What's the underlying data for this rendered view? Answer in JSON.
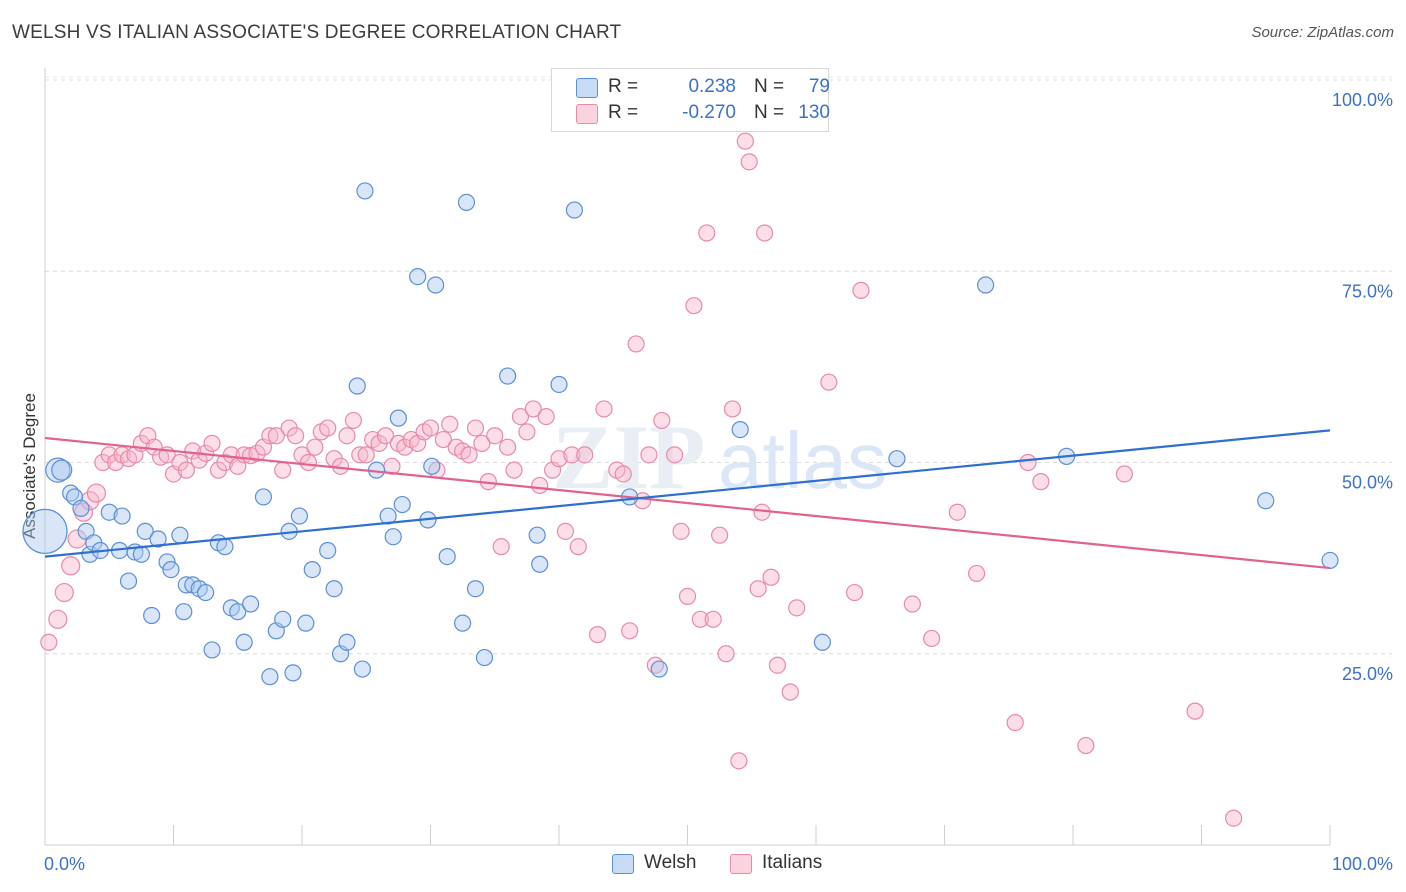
{
  "header": {
    "title": "WELSH VS ITALIAN ASSOCIATE'S DEGREE CORRELATION CHART",
    "source": "Source: ZipAtlas.com"
  },
  "legend": {
    "rows": [
      {
        "r_label": "R =",
        "r_value": "0.238",
        "n_label": "N =",
        "n_value": "79",
        "color": "#a9c8f0"
      },
      {
        "r_label": "R =",
        "r_value": "-0.270",
        "n_label": "N =",
        "n_value": "130",
        "color": "#f6b6c9"
      }
    ]
  },
  "bottom_legend": {
    "welsh": "Welsh",
    "italians": "Italians"
  },
  "colors": {
    "welsh_fill": "#a9c8f0",
    "welsh_stroke": "#5b8fd6",
    "welsh_line": "#2f6fcf",
    "italians_fill": "#f6b6c9",
    "italians_stroke": "#e88aa8",
    "italians_line": "#e0628e",
    "tick_label": "#3b72c8"
  },
  "chart_data": {
    "type": "scatter",
    "title": "WELSH VS ITALIAN ASSOCIATE'S DEGREE CORRELATION CHART",
    "xlabel": "",
    "ylabel": "Associate's Degree",
    "xlim": [
      0,
      100
    ],
    "ylim": [
      0,
      100
    ],
    "x_tick_labels": [
      "0.0%",
      "100.0%"
    ],
    "y_tick_labels": [
      "25.0%",
      "50.0%",
      "75.0%",
      "100.0%"
    ],
    "y_ticks": [
      25,
      50,
      75,
      100
    ],
    "grid": "horizontal dashed",
    "watermark": "ZIPatlas",
    "series": [
      {
        "name": "Welsh",
        "trend": [
          [
            0,
            37.7
          ],
          [
            100,
            54.2
          ]
        ],
        "points": [
          [
            0,
            41,
            22
          ],
          [
            1,
            49,
            12
          ],
          [
            1.3,
            49,
            10
          ],
          [
            2,
            46,
            8
          ],
          [
            2.3,
            45.5,
            8
          ],
          [
            2.8,
            44,
            8
          ],
          [
            3.2,
            41,
            8
          ],
          [
            3.5,
            38,
            8
          ],
          [
            3.8,
            39.5,
            8
          ],
          [
            4.3,
            38.5,
            8
          ],
          [
            5,
            43.5,
            8
          ],
          [
            5.8,
            38.5,
            8
          ],
          [
            6,
            43,
            8
          ],
          [
            6.5,
            34.5,
            8
          ],
          [
            7,
            38.3,
            8
          ],
          [
            7.5,
            38,
            8
          ],
          [
            7.8,
            41,
            8
          ],
          [
            8.3,
            30,
            8
          ],
          [
            8.8,
            40,
            8
          ],
          [
            9.5,
            37,
            8
          ],
          [
            9.8,
            36,
            8
          ],
          [
            10.5,
            40.5,
            8
          ],
          [
            10.8,
            30.5,
            8
          ],
          [
            11,
            34,
            8
          ],
          [
            11.5,
            34,
            8
          ],
          [
            12,
            33.5,
            8
          ],
          [
            12.5,
            33,
            8
          ],
          [
            13,
            25.5,
            8
          ],
          [
            13.5,
            39.5,
            8
          ],
          [
            14,
            39,
            8
          ],
          [
            14.5,
            31,
            8
          ],
          [
            15,
            30.5,
            8
          ],
          [
            15.5,
            26.5,
            8
          ],
          [
            16,
            31.5,
            8
          ],
          [
            17,
            45.5,
            8
          ],
          [
            17.5,
            22,
            8
          ],
          [
            18,
            28,
            8
          ],
          [
            18.5,
            29.5,
            8
          ],
          [
            19,
            41,
            8
          ],
          [
            19.3,
            22.5,
            8
          ],
          [
            19.8,
            43,
            8
          ],
          [
            20.3,
            29,
            8
          ],
          [
            20.8,
            36,
            8
          ],
          [
            22,
            38.5,
            8
          ],
          [
            22.5,
            33.5,
            8
          ],
          [
            23,
            25,
            8
          ],
          [
            23.5,
            26.5,
            8
          ],
          [
            24.3,
            60,
            8
          ],
          [
            24.7,
            23,
            8
          ],
          [
            24.9,
            85.5,
            8
          ],
          [
            25.8,
            49,
            8
          ],
          [
            26.7,
            43,
            8
          ],
          [
            27.1,
            40.3,
            8
          ],
          [
            27.5,
            55.8,
            8
          ],
          [
            27.8,
            44.5,
            8
          ],
          [
            29,
            74.3,
            8
          ],
          [
            29.8,
            42.5,
            8
          ],
          [
            30.1,
            49.5,
            8
          ],
          [
            30.4,
            73.2,
            8
          ],
          [
            31.3,
            37.7,
            8
          ],
          [
            32.5,
            29,
            8
          ],
          [
            32.8,
            84,
            8
          ],
          [
            33.5,
            33.5,
            8
          ],
          [
            34.2,
            24.5,
            8
          ],
          [
            36,
            61.3,
            8
          ],
          [
            38.3,
            40.5,
            8
          ],
          [
            38.5,
            36.7,
            8
          ],
          [
            40,
            60.2,
            8
          ],
          [
            41.2,
            83,
            8
          ],
          [
            45.5,
            45.5,
            8
          ],
          [
            47.8,
            23,
            8
          ],
          [
            54.1,
            54.3,
            8
          ],
          [
            60.5,
            26.5,
            8
          ],
          [
            66.3,
            50.5,
            8
          ],
          [
            73.2,
            73.2,
            8
          ],
          [
            79.5,
            50.8,
            8
          ],
          [
            95,
            45,
            8
          ],
          [
            100,
            37.2,
            8
          ]
        ]
      },
      {
        "name": "Italians",
        "trend": [
          [
            0,
            53.2
          ],
          [
            100,
            36.2
          ]
        ],
        "points": [
          [
            0.3,
            26.5,
            8
          ],
          [
            1,
            29.5,
            9
          ],
          [
            1.5,
            33,
            9
          ],
          [
            2,
            36.5,
            9
          ],
          [
            2.5,
            40,
            9
          ],
          [
            3,
            43.5,
            9
          ],
          [
            3.5,
            45,
            9
          ],
          [
            4,
            46,
            9
          ],
          [
            4.5,
            50,
            8
          ],
          [
            5,
            51,
            8
          ],
          [
            5.5,
            50,
            8
          ],
          [
            6,
            51,
            8
          ],
          [
            6.5,
            50.5,
            8
          ],
          [
            7,
            51,
            8
          ],
          [
            7.5,
            52.5,
            8
          ],
          [
            8,
            53.5,
            8
          ],
          [
            8.5,
            52,
            8
          ],
          [
            9,
            50.7,
            8
          ],
          [
            9.5,
            51,
            8
          ],
          [
            10,
            48.5,
            8
          ],
          [
            10.5,
            50,
            8
          ],
          [
            11,
            49,
            8
          ],
          [
            11.5,
            51.5,
            8
          ],
          [
            12,
            50.3,
            8
          ],
          [
            12.5,
            51.2,
            8
          ],
          [
            13,
            52.5,
            8
          ],
          [
            13.5,
            49,
            8
          ],
          [
            14,
            50,
            8
          ],
          [
            14.5,
            51,
            8
          ],
          [
            15,
            49.5,
            8
          ],
          [
            15.5,
            51,
            8
          ],
          [
            16,
            50.9,
            8
          ],
          [
            16.5,
            51.2,
            8
          ],
          [
            17,
            52,
            8
          ],
          [
            17.5,
            53.5,
            8
          ],
          [
            18,
            53.5,
            8
          ],
          [
            18.5,
            49,
            8
          ],
          [
            19,
            54.5,
            8
          ],
          [
            19.5,
            53.5,
            8
          ],
          [
            20,
            51,
            8
          ],
          [
            20.5,
            50,
            8
          ],
          [
            21,
            52,
            8
          ],
          [
            21.5,
            54,
            8
          ],
          [
            22,
            54.5,
            8
          ],
          [
            22.5,
            50.5,
            8
          ],
          [
            23,
            49.5,
            8
          ],
          [
            23.5,
            53.5,
            8
          ],
          [
            24,
            55.5,
            8
          ],
          [
            24.5,
            51,
            8
          ],
          [
            25,
            51,
            8
          ],
          [
            25.5,
            53,
            8
          ],
          [
            26,
            52.5,
            8
          ],
          [
            26.5,
            53.5,
            8
          ],
          [
            27,
            49.5,
            8
          ],
          [
            27.5,
            52.5,
            8
          ],
          [
            28,
            52,
            8
          ],
          [
            28.5,
            53,
            8
          ],
          [
            29,
            52.5,
            8
          ],
          [
            29.5,
            54,
            8
          ],
          [
            30,
            54.5,
            8
          ],
          [
            30.5,
            49,
            8
          ],
          [
            31,
            53,
            8
          ],
          [
            31.5,
            55,
            8
          ],
          [
            32,
            52,
            8
          ],
          [
            32.5,
            51.5,
            8
          ],
          [
            33,
            51,
            8
          ],
          [
            33.5,
            54.5,
            8
          ],
          [
            34,
            52.5,
            8
          ],
          [
            34.5,
            47.5,
            8
          ],
          [
            35,
            53.5,
            8
          ],
          [
            35.5,
            39,
            8
          ],
          [
            36,
            52,
            8
          ],
          [
            36.5,
            49,
            8
          ],
          [
            37,
            56,
            8
          ],
          [
            37.5,
            54,
            8
          ],
          [
            38,
            57,
            8
          ],
          [
            38.5,
            47,
            8
          ],
          [
            39,
            56,
            8
          ],
          [
            39.5,
            49,
            8
          ],
          [
            40,
            50.5,
            8
          ],
          [
            40.5,
            41,
            8
          ],
          [
            41,
            51,
            8
          ],
          [
            41.5,
            39,
            8
          ],
          [
            42,
            51,
            8
          ],
          [
            43,
            27.5,
            8
          ],
          [
            43.5,
            57,
            8
          ],
          [
            44.5,
            49,
            8
          ],
          [
            45,
            48.5,
            8
          ],
          [
            45.5,
            28,
            8
          ],
          [
            46.5,
            45,
            8
          ],
          [
            47,
            51,
            8
          ],
          [
            47.5,
            23.5,
            8
          ],
          [
            48,
            55.5,
            8
          ],
          [
            49,
            51,
            8
          ],
          [
            49.5,
            41,
            8
          ],
          [
            50,
            32.5,
            8
          ],
          [
            50.5,
            70.5,
            8
          ],
          [
            51,
            29.5,
            8
          ],
          [
            51.5,
            80,
            8
          ],
          [
            52,
            29.5,
            8
          ],
          [
            52.5,
            40.5,
            8
          ],
          [
            53,
            25,
            8
          ],
          [
            53.5,
            57,
            8
          ],
          [
            54,
            11,
            8
          ],
          [
            54.5,
            92,
            8
          ],
          [
            54.8,
            89.3,
            8
          ],
          [
            55.5,
            33.5,
            8
          ],
          [
            55.8,
            43.5,
            8
          ],
          [
            56,
            80,
            8
          ],
          [
            56.5,
            35,
            8
          ],
          [
            57,
            23.5,
            8
          ],
          [
            58,
            20,
            8
          ],
          [
            58.5,
            31,
            8
          ],
          [
            61,
            60.5,
            8
          ],
          [
            63,
            33,
            8
          ],
          [
            63.5,
            72.5,
            8
          ],
          [
            67.5,
            31.5,
            8
          ],
          [
            69,
            27,
            8
          ],
          [
            71,
            43.5,
            8
          ],
          [
            72.5,
            35.5,
            8
          ],
          [
            75.5,
            16,
            8
          ],
          [
            76.5,
            50,
            8
          ],
          [
            77.5,
            47.5,
            8
          ],
          [
            81,
            13,
            8
          ],
          [
            84,
            48.5,
            8
          ],
          [
            89.5,
            17.5,
            8
          ],
          [
            92.5,
            3.5,
            8
          ],
          [
            46,
            65.5,
            8
          ]
        ]
      }
    ]
  }
}
